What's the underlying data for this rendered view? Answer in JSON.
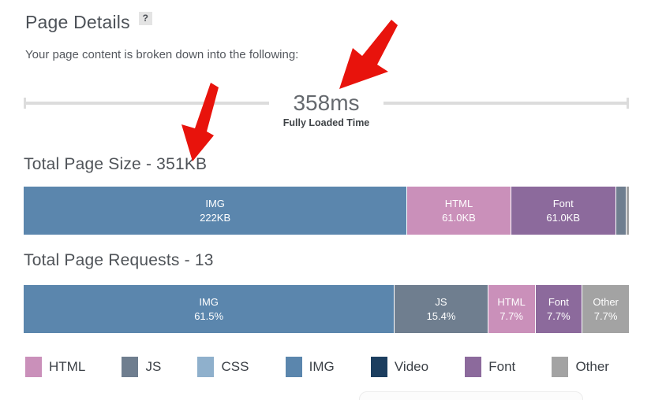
{
  "header": {
    "title": "Page Details",
    "help_label": "?"
  },
  "intro": {
    "text": "Your page content is broken down into the following:"
  },
  "timeline": {
    "value": "358ms",
    "caption": "Fully Loaded Time"
  },
  "size_chart": {
    "heading": "Total Page Size - 351KB"
  },
  "requests_chart": {
    "heading": "Total Page Requests - 13"
  },
  "legend": {
    "items": [
      {
        "label": "HTML",
        "color": "#ca90ba"
      },
      {
        "label": "JS",
        "color": "#6f7e8f"
      },
      {
        "label": "CSS",
        "color": "#8fb0cc"
      },
      {
        "label": "IMG",
        "color": "#5b86ad"
      },
      {
        "label": "Video",
        "color": "#1c3e5f"
      },
      {
        "label": "Font",
        "color": "#8c6a9c"
      },
      {
        "label": "Other",
        "color": "#a3a3a3"
      }
    ]
  },
  "colors": {
    "arrow": "#e8130c",
    "bracket_line": "#dcdcdc"
  },
  "chart_data": [
    {
      "type": "bar",
      "variant": "stacked-horizontal",
      "title": "Total Page Size - 351KB",
      "total": "351KB",
      "segments": [
        {
          "label": "IMG",
          "value": "222KB",
          "width_pct": 63.6,
          "color": "#5b86ad"
        },
        {
          "label": "HTML",
          "value": "61.0KB",
          "width_pct": 17.1,
          "color": "#ca90ba"
        },
        {
          "label": "Font",
          "value": "61.0KB",
          "width_pct": 17.3,
          "color": "#8c6a9c"
        },
        {
          "label": "",
          "value": "",
          "width_pct": 1.6,
          "color": "#6f7e8f"
        },
        {
          "label": "",
          "value": "",
          "width_pct": 0.4,
          "color": "#a3a3a3"
        }
      ]
    },
    {
      "type": "bar",
      "variant": "stacked-horizontal",
      "title": "Total Page Requests - 13",
      "total": "13",
      "segments": [
        {
          "label": "IMG",
          "value": "61.5%",
          "width_pct": 61.5,
          "color": "#5b86ad"
        },
        {
          "label": "JS",
          "value": "15.4%",
          "width_pct": 15.4,
          "color": "#6f7e8f"
        },
        {
          "label": "HTML",
          "value": "7.7%",
          "width_pct": 7.7,
          "color": "#ca90ba"
        },
        {
          "label": "Font",
          "value": "7.7%",
          "width_pct": 7.7,
          "color": "#8c6a9c"
        },
        {
          "label": "Other",
          "value": "7.7%",
          "width_pct": 7.7,
          "color": "#a3a3a3"
        }
      ]
    }
  ]
}
